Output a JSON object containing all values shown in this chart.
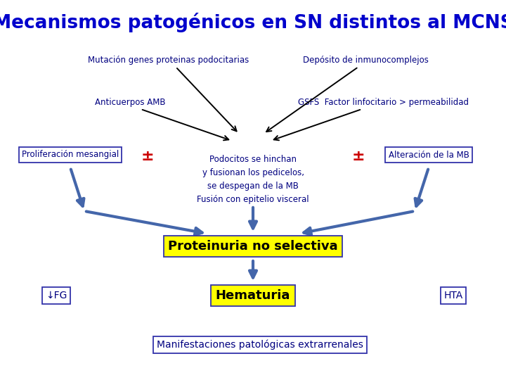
{
  "title": "Mecanismos patogénicos en SN distintos al MCNS",
  "title_color": "#0000cc",
  "title_fontsize": 19,
  "bg_color": "#ffffff",
  "box_edge_color": "#3333aa",
  "yellow_bg": "#ffff00",
  "blue_arrow_color": "#4466aa",
  "black_arrow_color": "#000000",
  "red_plus_color": "#cc0000",
  "dark_blue_text": "#000080",
  "label_fontsize": 8.5,
  "labels": {
    "mutacion": "Mutación genes proteinas podocitarias",
    "deposito": "Depósito de inmunocomplejos",
    "anticuerpos": "Anticuerpos AMB",
    "gsfs": "GSFS  Factor linfocitario > permeabilidad",
    "proliferacion": "Proliferación mesangial",
    "podocitos": "Podocitos se hinchan\ny fusionan los pedicelos,\nse despegan de la MB\nFusión con epitelio visceral",
    "alteracion": "Alteración de la MB",
    "proteinuria": "Proteinuria no selectiva",
    "hematuria": "Hematuria",
    "fg": "↓FG",
    "hta": "HTA",
    "manifestaciones": "Manifestaciones patológicas extrarrenales"
  }
}
